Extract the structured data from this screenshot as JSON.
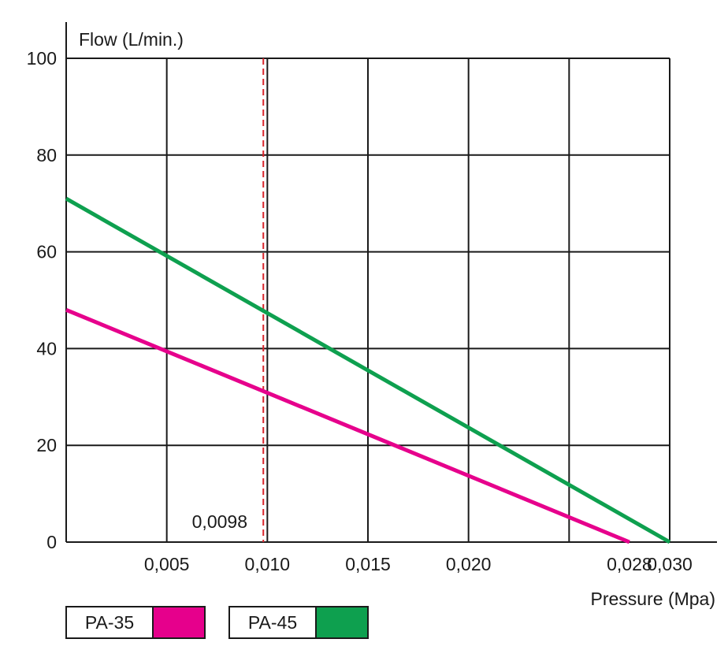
{
  "chart_data": {
    "type": "line",
    "ylabel": "Flow (L/min.)",
    "xlabel": "Pressure (Mpa)",
    "xlim": [
      0,
      0.03
    ],
    "ylim": [
      0,
      100
    ],
    "x_ticks": [
      {
        "value": 0.005,
        "label": "0,005"
      },
      {
        "value": 0.01,
        "label": "0,010"
      },
      {
        "value": 0.015,
        "label": "0,015"
      },
      {
        "value": 0.02,
        "label": "0,020"
      },
      {
        "value": 0.028,
        "label": "0,028"
      },
      {
        "value": 0.03,
        "label": "0,030"
      }
    ],
    "x_gridlines": [
      0.005,
      0.01,
      0.015,
      0.02,
      0.025,
      0.03
    ],
    "y_ticks": [
      {
        "value": 0,
        "label": "0"
      },
      {
        "value": 20,
        "label": "20"
      },
      {
        "value": 40,
        "label": "40"
      },
      {
        "value": 60,
        "label": "60"
      },
      {
        "value": 80,
        "label": "80"
      },
      {
        "value": 100,
        "label": "100"
      }
    ],
    "series": [
      {
        "name": "PA-35",
        "color": "#e6008c",
        "x": [
          0,
          0.028
        ],
        "y": [
          48,
          0
        ]
      },
      {
        "name": "PA-45",
        "color": "#0ea04f",
        "x": [
          0,
          0.03
        ],
        "y": [
          71,
          0
        ]
      }
    ],
    "reference_line": {
      "x": 0.0098,
      "label": "0,0098",
      "color": "#d9262c",
      "style": "dashed"
    },
    "grid": true
  }
}
